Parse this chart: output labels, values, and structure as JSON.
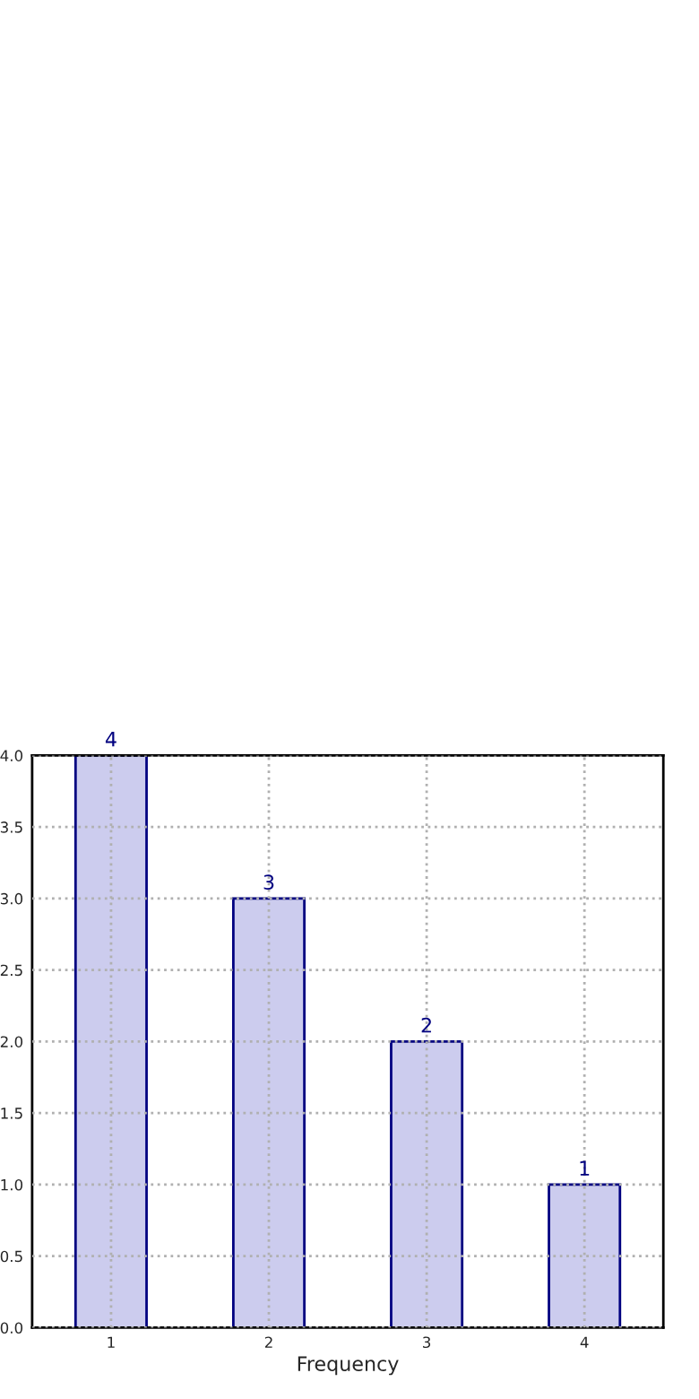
{
  "chart_data": {
    "type": "bar",
    "xlabel": "Frequency",
    "categories": [
      "1",
      "2",
      "3",
      "4"
    ],
    "values": [
      4,
      3,
      2,
      1
    ],
    "color": "#ccccee",
    "ylim": [
      0,
      4.0
    ],
    "yticks": [
      {
        "value": 0,
        "label": "0.0"
      },
      {
        "value": 0.5,
        "label": "0.5"
      },
      {
        "value": 1.0,
        "label": "1.0"
      },
      {
        "value": 1.5,
        "label": "1.5"
      },
      {
        "value": 2.0,
        "label": "2.0"
      },
      {
        "value": 2.5,
        "label": "2.5"
      },
      {
        "value": 3.0,
        "label": "3.0"
      },
      {
        "value": 3.5,
        "label": "3.5"
      },
      {
        "value": 4.0,
        "label": "4.0"
      }
    ],
    "grid": true,
    "line_style": "dotted",
    "data_labels": true
  }
}
